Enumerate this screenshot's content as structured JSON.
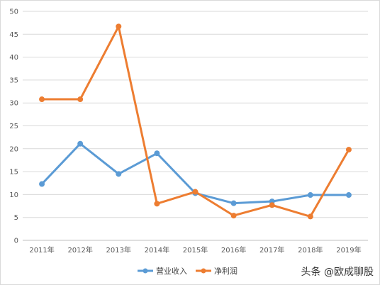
{
  "chart_data": {
    "type": "line",
    "categories": [
      "2011年",
      "2012年",
      "2013年",
      "2014年",
      "2015年",
      "2016年",
      "2017年",
      "2018年",
      "2019年"
    ],
    "series": [
      {
        "name": "营业收入",
        "color": "#5b9bd5",
        "values": [
          12.3,
          21.1,
          14.5,
          19.0,
          10.3,
          8.1,
          8.5,
          9.9,
          9.9
        ]
      },
      {
        "name": "净利润",
        "color": "#ed7d31",
        "values": [
          30.8,
          30.8,
          46.7,
          8.0,
          10.6,
          5.4,
          7.7,
          5.2,
          19.8
        ]
      }
    ],
    "ylim": [
      0,
      50
    ],
    "yticks": [
      0,
      5,
      10,
      15,
      20,
      25,
      30,
      35,
      40,
      45,
      50
    ],
    "grid": true,
    "legend": "bottom-center"
  },
  "watermark": "头条 @欧成聊股"
}
